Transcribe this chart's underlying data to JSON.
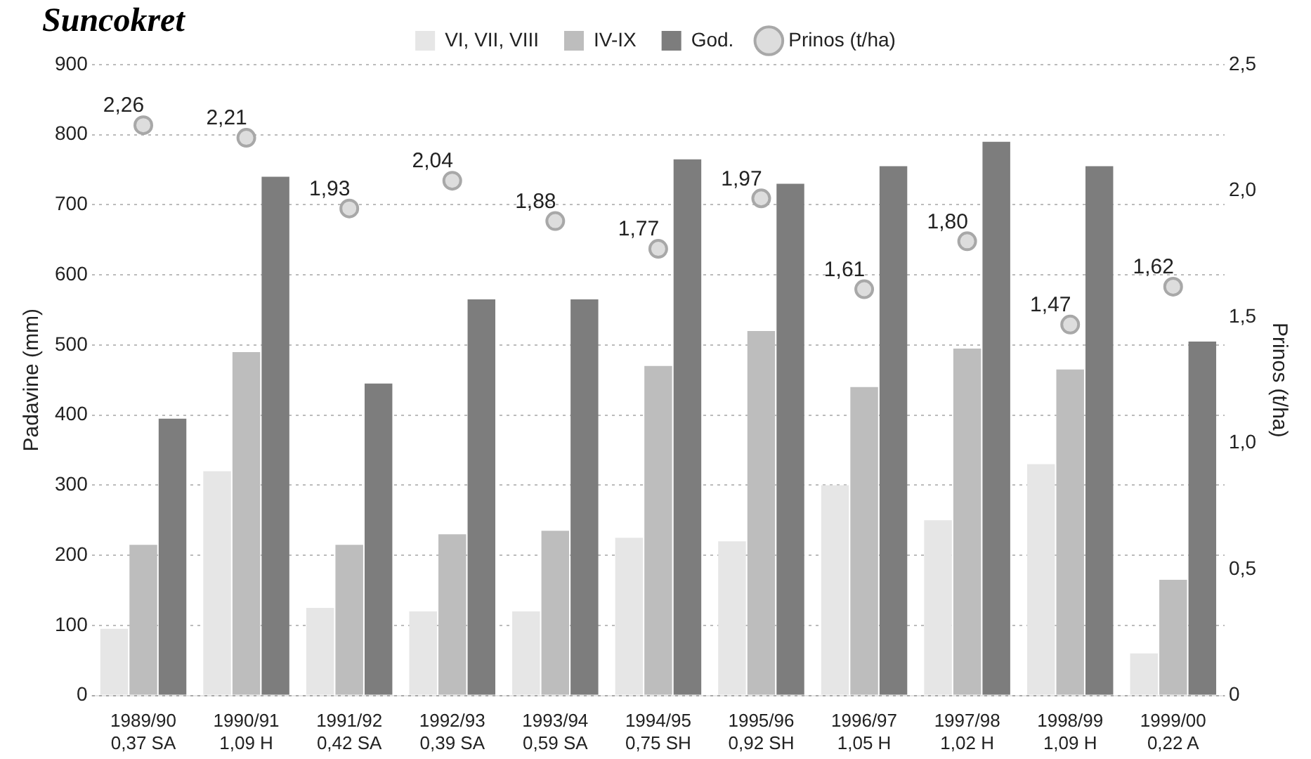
{
  "chart_data": {
    "type": "bar",
    "title": "Suncokret",
    "ylabel": "Padavine (mm)",
    "y2label": "Prinos (t/ha)",
    "categories": [
      "1989/90\n0,37 SA",
      "1990/91\n1,09 H",
      "1991/92\n0,42 SA",
      "1992/93\n0,39 SA",
      "1993/94\n0,59 SA",
      "1994/95\n0,75 SH",
      "1995/96\n0,92 SH",
      "1996/97\n1,05 H",
      "1997/98\n1,02 H",
      "1998/99\n1,09 H",
      "1999/00\n0,22 A"
    ],
    "series": [
      {
        "name": "VI, VII, VIII",
        "color": "#e6e6e6",
        "values": [
          95,
          320,
          125,
          120,
          120,
          225,
          220,
          300,
          250,
          330,
          60
        ]
      },
      {
        "name": "IV-IX",
        "color": "#bdbdbd",
        "values": [
          215,
          490,
          215,
          230,
          235,
          470,
          520,
          440,
          495,
          465,
          165
        ]
      },
      {
        "name": "God.",
        "color": "#7d7d7d",
        "values": [
          395,
          740,
          445,
          565,
          565,
          765,
          730,
          755,
          790,
          755,
          505
        ]
      },
      {
        "name": "Prinos (t/ha)",
        "type": "scatter",
        "axis": "y2",
        "color": "#a8a8a8",
        "marker": "circle",
        "values": [
          2.26,
          2.21,
          1.93,
          2.04,
          1.88,
          1.77,
          1.97,
          1.61,
          1.8,
          1.47,
          1.62
        ],
        "value_labels": [
          "2,26",
          "2,21",
          "1,93",
          "2,04",
          "1,88",
          "1,77",
          "1,97",
          "1,61",
          "1,80",
          "1,47",
          "1,62"
        ]
      }
    ],
    "ylim": [
      0,
      900
    ],
    "yticks": [
      0,
      100,
      200,
      300,
      400,
      500,
      600,
      700,
      800,
      900
    ],
    "y2lim": [
      0,
      2.5
    ],
    "y2ticks": [
      0,
      {
        "value": 0.5,
        "label": "0,5"
      },
      {
        "value": 1,
        "label": "1,0"
      },
      {
        "value": 1.5,
        "label": "1,5"
      },
      {
        "value": 2,
        "label": "2,0"
      },
      {
        "value": 2.5,
        "label": "2,5"
      }
    ],
    "grid": "y",
    "legend": "top"
  }
}
